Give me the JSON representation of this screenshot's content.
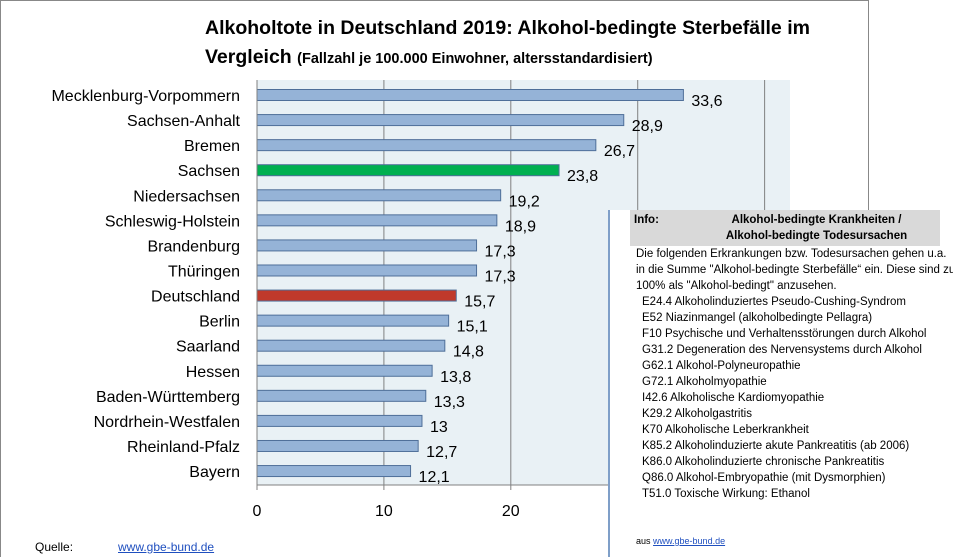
{
  "chart_data": {
    "type": "hbar",
    "title": "Alkoholtote in Deutschland 2019: Alkohol-bedingte Sterbefälle im Vergleich",
    "subtitle": "(Fallzahl je 100.000 Einwohner, altersstandardisiert)",
    "categories": [
      "Mecklenburg-Vorpommern",
      "Sachsen-Anhalt",
      "Bremen",
      "Sachsen",
      "Niedersachsen",
      "Schleswig-Holstein",
      "Brandenburg",
      "Thüringen",
      "Deutschland",
      "Berlin",
      "Saarland",
      "Hessen",
      "Baden-Württemberg",
      "Nordrhein-Westfalen",
      "Rheinland-Pfalz",
      "Bayern"
    ],
    "values": [
      33.6,
      28.9,
      26.7,
      23.8,
      19.2,
      18.9,
      17.3,
      17.3,
      15.7,
      15.1,
      14.8,
      13.8,
      13.3,
      13,
      12.7,
      12.1
    ],
    "value_labels": [
      "33,6",
      "28,9",
      "26,7",
      "23,8",
      "19,2",
      "18,9",
      "17,3",
      "17,3",
      "15,7",
      "15,1",
      "14,8",
      "13,8",
      "13,3",
      "13",
      "12,7",
      "12,1"
    ],
    "colors": [
      "#95b3d7",
      "#95b3d7",
      "#95b3d7",
      "#00b050",
      "#95b3d7",
      "#95b3d7",
      "#95b3d7",
      "#95b3d7",
      "#c0392b",
      "#95b3d7",
      "#95b3d7",
      "#95b3d7",
      "#95b3d7",
      "#95b3d7",
      "#95b3d7",
      "#95b3d7"
    ],
    "xlim": [
      0,
      42
    ],
    "xticks": [
      0,
      10,
      20,
      30,
      40
    ],
    "grid": true
  },
  "info": {
    "label": "Info:",
    "heading": [
      "Alkohol-bedingte Krankheiten /",
      "Alkohol-bedingte Todesursachen"
    ],
    "text": "Die folgenden Erkrankungen bzw. Todesursachen gehen u.a. in die Summe \"Alkohol-bedingte Sterbefälle“ ein. Diese sind zu 100% als \"Alkohol-bedingt\" anzusehen.",
    "items": [
      "E24.4 Alkoholinduziertes Pseudo-Cushing-Syndrom",
      "E52 Niazinmangel (alkoholbedingte Pellagra)",
      "F10 Psychische und Verhaltensstörungen durch Alkohol",
      "G31.2 Degeneration des Nervensystems durch Alkohol",
      "G62.1 Alkohol-Polyneuropathie",
      "G72.1 Alkoholmyopathie",
      "I42.6 Alkoholische Kardiomyopathie",
      "K29.2 Alkoholgastritis",
      "K70 Alkoholische Leberkrankheit",
      "K85.2 Alkoholinduzierte akute Pankreatitis (ab 2006)",
      "K86.0 Alkoholinduzierte chronische Pankreatitis",
      "Q86.0 Alkohol-Embryopathie (mit Dysmorphien)",
      "T51.0 Toxische Wirkung: Ethanol"
    ],
    "source_prefix": "aus",
    "source_link": "www.gbe-bund.de"
  },
  "source": {
    "label": "Quelle:",
    "link": "www.gbe-bund.de"
  }
}
